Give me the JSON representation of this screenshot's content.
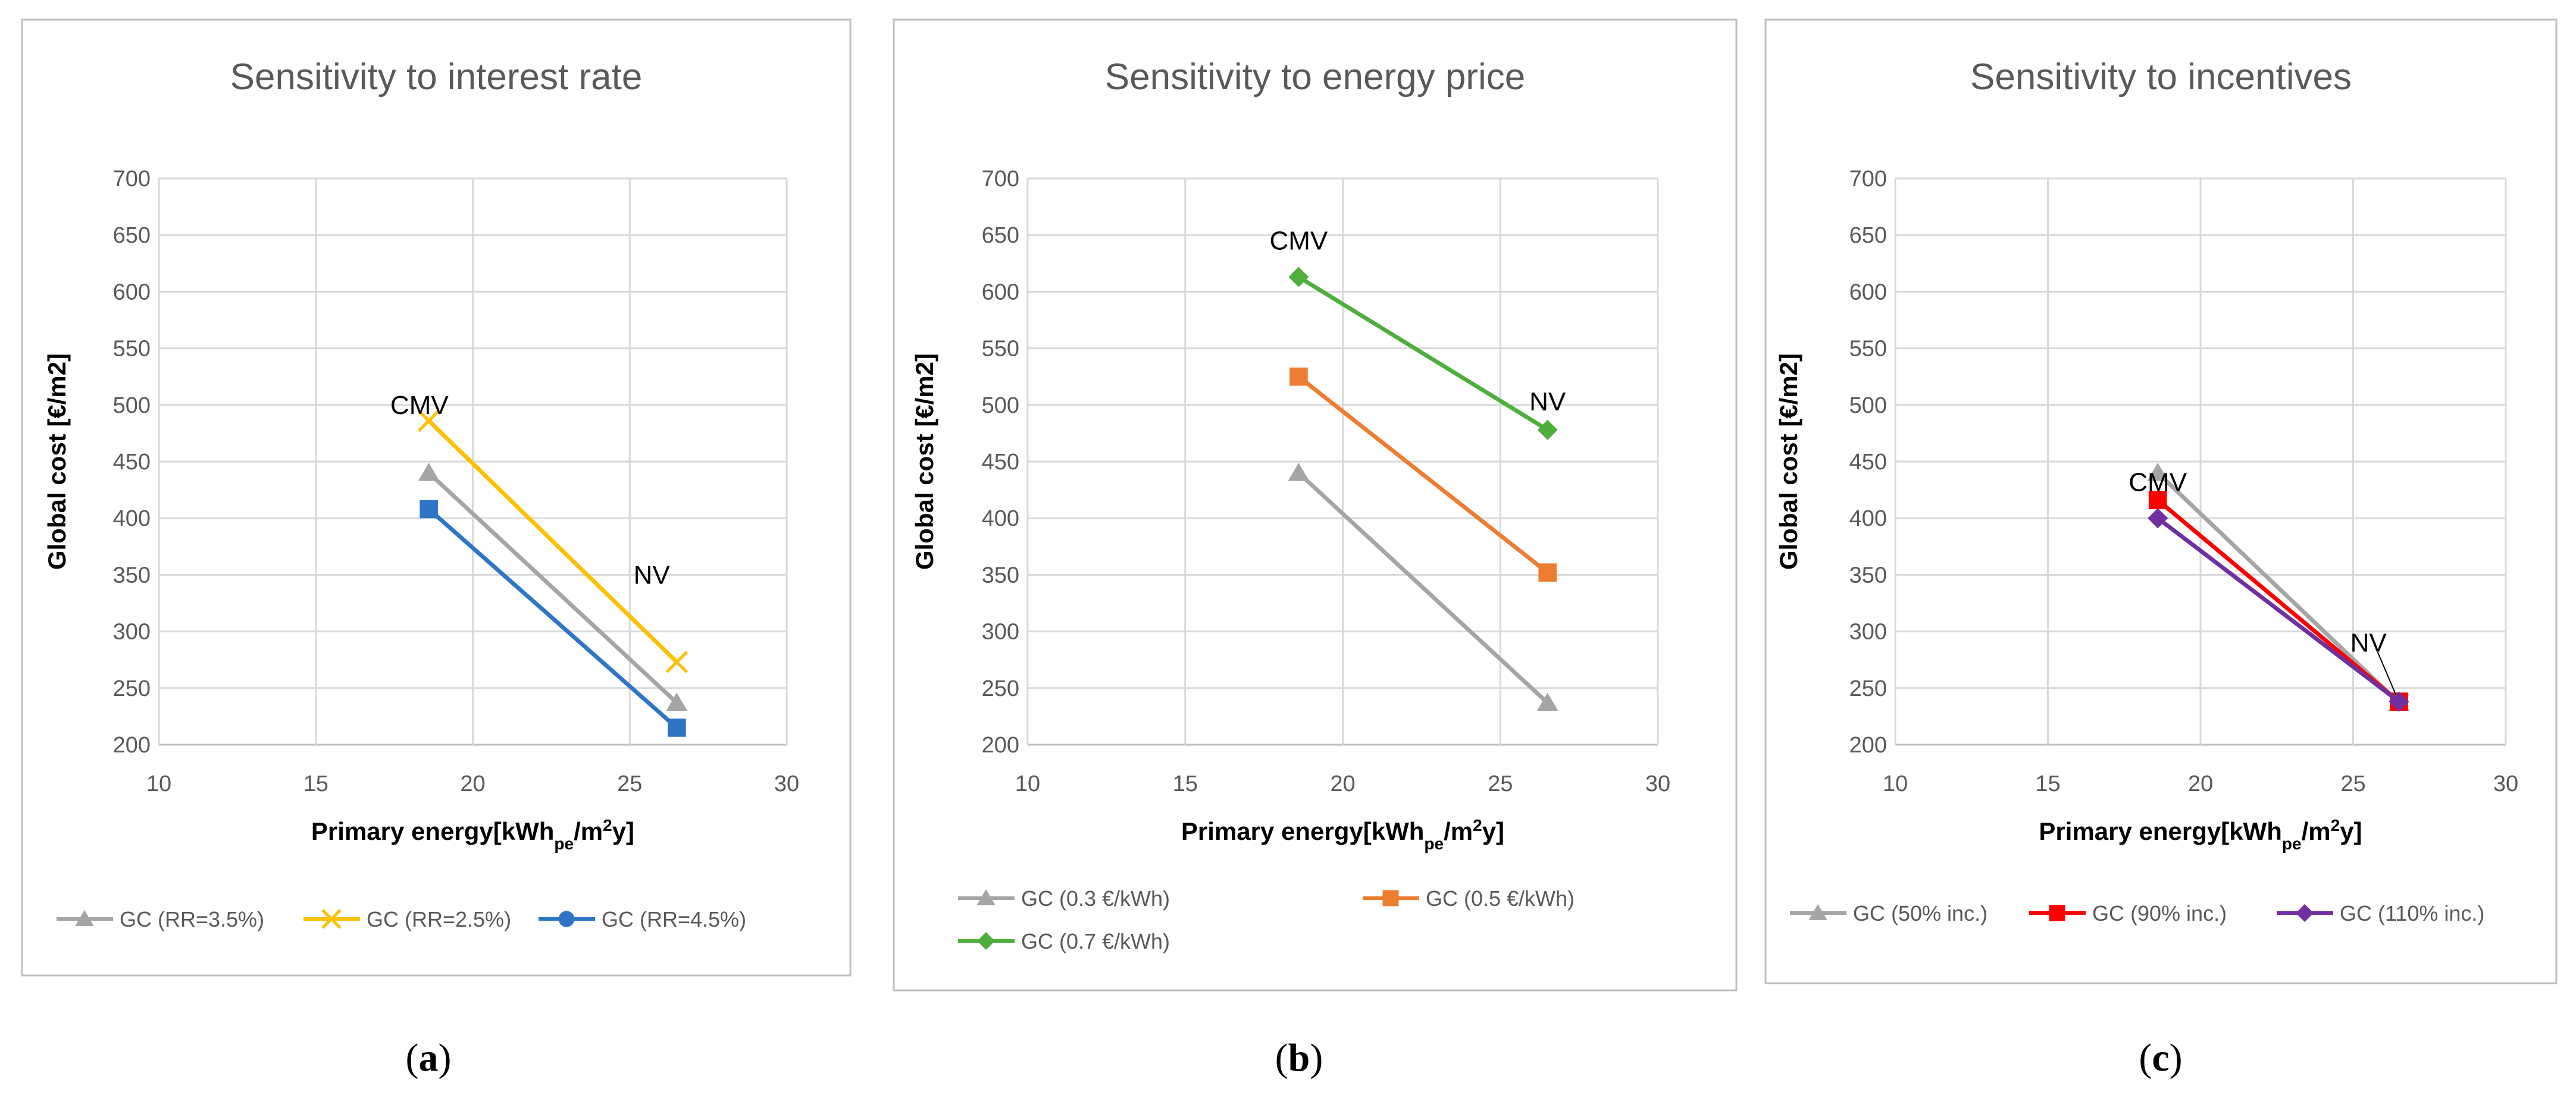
{
  "chart_data": [
    {
      "type": "line",
      "panel": "a",
      "caption": "a",
      "title": "Sensitivity to interest rate",
      "xlabel": "Primary energy",
      "xlabel_unit": {
        "pre": "[kWh",
        "sub": "pe",
        "mid": "/m",
        "sup": "2",
        "post": "y]"
      },
      "ylabel": "Global cost [€/m2]",
      "xlim": [
        10,
        30
      ],
      "ylim": [
        200,
        700
      ],
      "xticks": [
        10,
        15,
        20,
        25,
        30
      ],
      "yticks": [
        200,
        250,
        300,
        350,
        400,
        450,
        500,
        550,
        600,
        650,
        700
      ],
      "grid": true,
      "series": [
        {
          "name": "GC (RR=3.5%)",
          "color": "#a5a5a5",
          "marker": "triangle",
          "x": [
            18.6,
            26.5
          ],
          "y": [
            440,
            237
          ]
        },
        {
          "name": "GC (RR=2.5%)",
          "color": "#ffc000",
          "marker": "x",
          "x": [
            18.6,
            26.5
          ],
          "y": [
            486,
            273
          ]
        },
        {
          "name": "GC (RR=4.5%)",
          "color": "#2e75c6",
          "marker": "square",
          "legend_marker": "circle",
          "x": [
            18.6,
            26.5
          ],
          "y": [
            408,
            215
          ]
        }
      ],
      "annotations": [
        {
          "text": "CMV",
          "x": 18.3,
          "y": 500
        },
        {
          "text": "NV",
          "x": 25.7,
          "y": 350
        }
      ]
    },
    {
      "type": "line",
      "panel": "b",
      "caption": "b",
      "title": "Sensitivity to energy price",
      "xlabel": "Primary energy",
      "xlabel_unit": {
        "pre": "[kWh",
        "sub": "pe",
        "mid": "/m",
        "sup": "2",
        "post": "y]"
      },
      "ylabel": "Global cost [€/m2]",
      "xlim": [
        10,
        30
      ],
      "ylim": [
        200,
        700
      ],
      "xticks": [
        10,
        15,
        20,
        25,
        30
      ],
      "yticks": [
        200,
        250,
        300,
        350,
        400,
        450,
        500,
        550,
        600,
        650,
        700
      ],
      "grid": true,
      "series": [
        {
          "name": "GC (0.3 €/kWh)",
          "color": "#a5a5a5",
          "marker": "triangle",
          "x": [
            18.6,
            26.5
          ],
          "y": [
            440,
            237
          ]
        },
        {
          "name": "GC (0.5 €/kWh)",
          "color": "#ed7d31",
          "marker": "square",
          "x": [
            18.6,
            26.5
          ],
          "y": [
            525,
            352
          ]
        },
        {
          "name": "GC (0.7 €/kWh)",
          "color": "#4eaf3c",
          "marker": "diamond",
          "x": [
            18.6,
            26.5
          ],
          "y": [
            613,
            478
          ]
        }
      ],
      "annotations": [
        {
          "text": "CMV",
          "x": 18.6,
          "y": 645
        },
        {
          "text": "NV",
          "x": 26.5,
          "y": 503
        }
      ]
    },
    {
      "type": "line",
      "panel": "c",
      "caption": "c",
      "title": "Sensitivity to incentives",
      "xlabel": "Primary energy",
      "xlabel_unit": {
        "pre": "[kWh",
        "sub": "pe",
        "mid": "/m",
        "sup": "2",
        "post": "y]"
      },
      "ylabel": "Global cost [€/m2]",
      "xlim": [
        10,
        30
      ],
      "ylim": [
        200,
        700
      ],
      "xticks": [
        10,
        15,
        20,
        25,
        30
      ],
      "yticks": [
        200,
        250,
        300,
        350,
        400,
        450,
        500,
        550,
        600,
        650,
        700
      ],
      "grid": true,
      "series": [
        {
          "name": "GC (50% inc.)",
          "color": "#a5a5a5",
          "marker": "triangle",
          "x": [
            18.6,
            26.5
          ],
          "y": [
            440,
            237
          ]
        },
        {
          "name": "GC (90% inc.)",
          "color": "#ff0000",
          "marker": "square",
          "x": [
            18.6,
            26.5
          ],
          "y": [
            416,
            238
          ]
        },
        {
          "name": "GC (110% inc.)",
          "color": "#7030a0",
          "marker": "diamond",
          "x": [
            18.6,
            26.5
          ],
          "y": [
            400,
            238
          ]
        }
      ],
      "annotations": [
        {
          "text": "CMV",
          "x": 18.6,
          "y": 432
        },
        {
          "text": "NV",
          "x": 25.5,
          "y": 290
        }
      ]
    }
  ]
}
